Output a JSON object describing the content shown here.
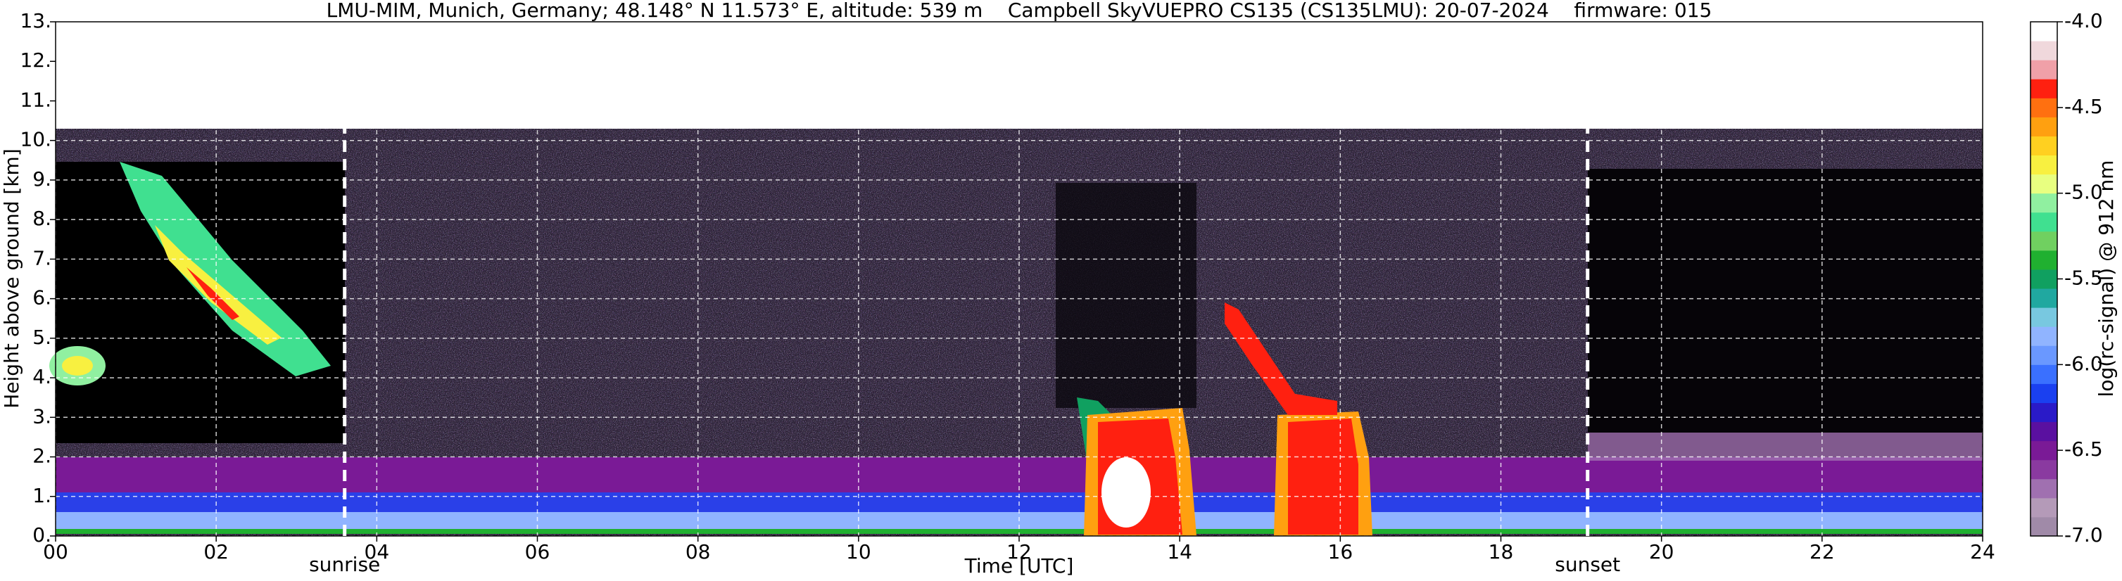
{
  "chart_data": {
    "type": "heatmap",
    "title": "LMU-MIM, Munich, Germany; 48.148° N 11.573° E, altitude: 539 m    Campbell SkyVUEPRO CS135 (CS135LMU): 20-07-2024    firmware: 015",
    "xlabel": "Time [UTC]",
    "ylabel": "Height above ground [km]",
    "xlim": [
      0,
      24
    ],
    "xticks": [
      {
        "value": 0,
        "label": "00"
      },
      {
        "value": 2,
        "label": "02"
      },
      {
        "value": 4,
        "label": "04"
      },
      {
        "value": 6,
        "label": "06"
      },
      {
        "value": 8,
        "label": "08"
      },
      10,
      12,
      14,
      16,
      18,
      20,
      22,
      24
    ],
    "ylim": [
      0,
      13
    ],
    "yticks": [
      {
        "value": 0,
        "label": "0."
      },
      {
        "value": 1,
        "label": "1."
      },
      {
        "value": 2,
        "label": "2."
      },
      {
        "value": 3,
        "label": "3."
      },
      {
        "value": 4,
        "label": "4."
      },
      {
        "value": 5,
        "label": "5."
      },
      {
        "value": 6,
        "label": "6."
      },
      {
        "value": 7,
        "label": "7."
      },
      {
        "value": 8,
        "label": "8."
      },
      {
        "value": 9,
        "label": "9."
      },
      {
        "value": 10,
        "label": "10."
      },
      {
        "value": 11,
        "label": "11."
      },
      {
        "value": 12,
        "label": "12."
      },
      {
        "value": 13,
        "label": "13."
      }
    ],
    "grid": true,
    "annotations": [
      {
        "label": "sunrise",
        "x": 3.6
      },
      {
        "label": "sunset",
        "x": 19.08
      }
    ],
    "colorbar": {
      "label": "log(rc-signal) @ 912 nm",
      "lim": [
        -7,
        -4
      ],
      "ticks": [
        {
          "value": -7,
          "label": "-7.0"
        },
        {
          "value": -6.5,
          "label": "-6.5"
        },
        {
          "value": -6,
          "label": "-6.0"
        },
        {
          "value": -5.5,
          "label": "-5.5"
        },
        {
          "value": -5,
          "label": "-5.0"
        },
        {
          "value": -4.5,
          "label": "-4.5"
        },
        {
          "value": -4,
          "label": "-4.0"
        }
      ],
      "colors": [
        "#a08aa8",
        "#b49ab8",
        "#a070b0",
        "#8a3aa0",
        "#7a1a96",
        "#5a10a0",
        "#2a1ac8",
        "#1a40f0",
        "#3a70ff",
        "#6a98ff",
        "#90b4ff",
        "#78c8e0",
        "#20a8a0",
        "#10a060",
        "#20b030",
        "#70d060",
        "#40e090",
        "#90f0a0",
        "#e8ff80",
        "#f8f040",
        "#ffd020",
        "#ffa010",
        "#ff7010",
        "#ff2010",
        "#f0a0a8",
        "#f0d8dc",
        "#ffffff"
      ]
    }
  }
}
